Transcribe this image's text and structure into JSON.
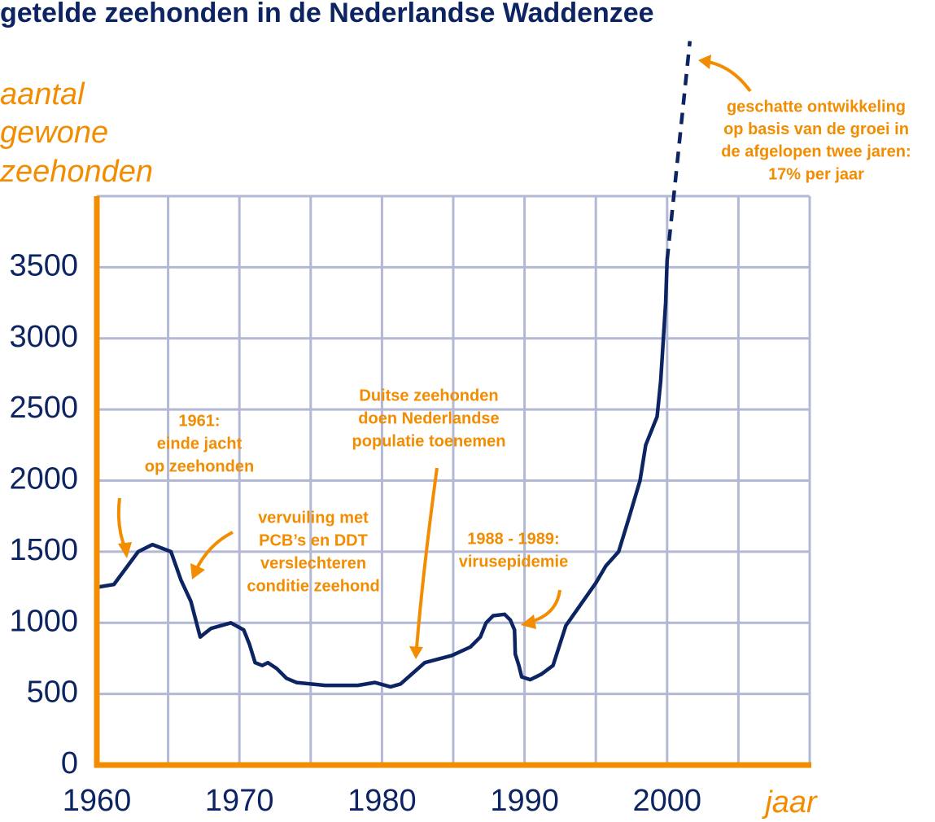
{
  "chart_data": {
    "type": "line",
    "title": "getelde zeehonden in de Nederlandse Waddenzee",
    "ylabel": [
      "aantal",
      "gewone",
      "zeehonden"
    ],
    "xlabel": "jaar",
    "xlim": [
      1960,
      2010
    ],
    "xticks": [
      1960,
      1970,
      1980,
      1990,
      2000
    ],
    "xminorticks": [
      1965,
      1975,
      1985,
      1995,
      2005,
      2010
    ],
    "ylim": [
      0,
      4000
    ],
    "yticks": [
      0,
      500,
      1000,
      1500,
      2000,
      2500,
      3000,
      3500
    ],
    "grid": true,
    "series": [
      {
        "color": "#0d2463",
        "style": "solid",
        "x": [
          1960,
          1961.2,
          1962.9,
          1963.9,
          1965.2,
          1965.9,
          1966.6,
          1967.25,
          1968,
          1969.4,
          1970.3,
          1970.7,
          1971.1,
          1971.6,
          1972,
          1972.6,
          1973.3,
          1974,
          1976,
          1978.3,
          1979.5,
          1980.6,
          1981.3,
          1983,
          1984.9,
          1986.2,
          1986.9,
          1987.3,
          1987.8,
          1988.6,
          1989,
          1989.3,
          1989.35,
          1989.6,
          1989.8,
          1990.4,
          1991.2,
          1992,
          1992.9,
          1995,
          1995.7,
          1996.6,
          1997.3,
          1998.1,
          1998.5,
          1998.9,
          1999.3,
          1999.55,
          1999.9,
          2000
        ],
        "values": [
          1250,
          1270,
          1500,
          1550,
          1500,
          1300,
          1150,
          900,
          960,
          1000,
          950,
          850,
          720,
          700,
          720,
          680,
          610,
          580,
          560,
          560,
          580,
          550,
          570,
          720,
          770,
          830,
          900,
          1000,
          1050,
          1060,
          1020,
          950,
          780,
          700,
          620,
          600,
          640,
          700,
          980,
          1280,
          1400,
          1500,
          1730,
          2000,
          2250,
          2350,
          2450,
          2700,
          3250,
          3550
        ]
      },
      {
        "color": "#0d2463",
        "style": "dashed",
        "x": [
          2000,
          2001.6
        ],
        "values": [
          3550,
          5090
        ]
      }
    ],
    "annotations": [
      {
        "lines": [
          "1961:",
          "einde jacht",
          "op zeehonden"
        ]
      },
      {
        "lines": [
          "vervuiling met",
          "PCB’s en DDT",
          "verslechteren",
          "conditie zeehond"
        ]
      },
      {
        "lines": [
          "Duitse zeehonden",
          "doen Nederlandse",
          "populatie toenemen"
        ]
      },
      {
        "lines": [
          "1988 - 1989:",
          "virusepidemie"
        ]
      },
      {
        "lines": [
          "geschatte ontwikkeling",
          "op basis van de groei in",
          "de afgelopen twee jaren:",
          "17% per jaar"
        ]
      }
    ]
  }
}
